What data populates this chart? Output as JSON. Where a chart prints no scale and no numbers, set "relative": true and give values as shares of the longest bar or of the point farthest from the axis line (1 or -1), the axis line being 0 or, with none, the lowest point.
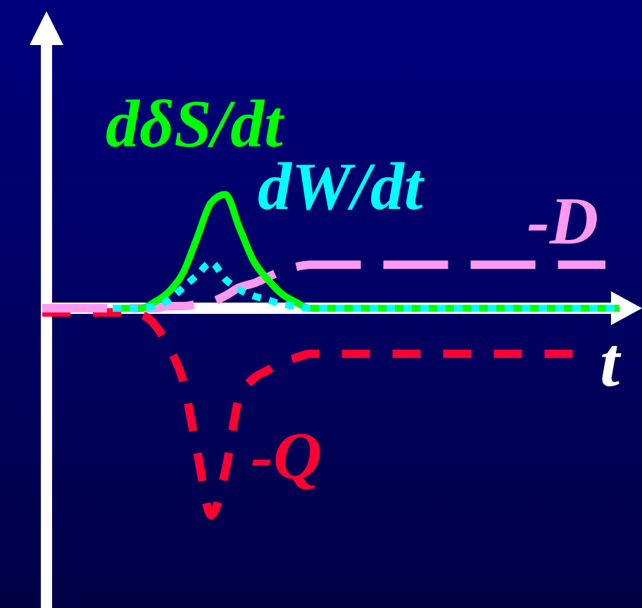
{
  "chart_data": {
    "type": "line",
    "relative": true,
    "xlabel": "t",
    "categories": [
      null,
      null,
      null,
      null,
      null,
      null,
      null,
      null,
      null,
      null,
      null,
      null,
      null,
      null,
      null,
      null,
      null,
      null,
      null,
      null,
      null,
      null,
      null,
      null,
      null,
      null,
      null,
      null,
      null,
      null,
      null,
      null,
      null,
      null,
      null,
      null,
      null,
      null,
      null,
      null,
      null,
      null
    ],
    "series": [
      {
        "name": "dδS/dt",
        "color": "#00ff00",
        "line_style": "solid",
        "values": [
          null,
          null,
          null,
          null,
          null,
          0,
          0,
          0,
          0.03,
          0.08,
          0.17,
          0.34,
          0.51,
          0.55,
          0.39,
          0.23,
          0.14,
          0.07,
          0.03,
          0,
          0,
          0,
          0,
          0,
          0,
          0,
          0,
          0,
          0,
          0,
          0,
          0,
          0,
          0,
          0,
          0,
          0,
          0,
          0,
          0,
          0,
          0
        ]
      },
      {
        "name": "dW/dt",
        "color": "#00ffff",
        "line_style": "dotted",
        "values": [
          null,
          null,
          null,
          null,
          null,
          0,
          0,
          0,
          0.01,
          0.04,
          0.1,
          0.16,
          0.22,
          0.14,
          0.09,
          0.06,
          0.04,
          0.02,
          0.01,
          0,
          0,
          0,
          0,
          0,
          0,
          0,
          0,
          0,
          0,
          0,
          0,
          0,
          0,
          0,
          0,
          0,
          0,
          0,
          0,
          0,
          0,
          0
        ]
      },
      {
        "name": "-D",
        "color": "#ff99ee",
        "line_style": "dashed",
        "values": [
          0,
          0,
          0,
          0,
          0,
          0,
          0,
          0,
          0,
          0.01,
          0.01,
          0.02,
          0.03,
          0.06,
          0.1,
          0.12,
          0.15,
          0.18,
          0.2,
          0.21,
          0.21,
          0.21,
          0.21,
          0.21,
          0.21,
          0.21,
          0.21,
          0.21,
          0.21,
          0.21,
          0.21,
          0.21,
          0.21,
          0.21,
          0.21,
          0.21,
          0.21,
          0.21,
          0.21,
          0.21,
          0.21,
          null
        ]
      },
      {
        "name": "-Q",
        "color": "#ff0033",
        "line_style": "dashed",
        "values": [
          -0.02,
          -0.02,
          -0.02,
          -0.02,
          -0.02,
          -0.02,
          -0.02,
          -0.03,
          -0.08,
          -0.19,
          -0.35,
          -0.69,
          -1,
          -0.79,
          -0.43,
          -0.34,
          -0.3,
          -0.26,
          -0.24,
          -0.22,
          -0.22,
          -0.22,
          -0.22,
          -0.22,
          -0.22,
          -0.22,
          -0.22,
          -0.22,
          -0.22,
          -0.22,
          -0.22,
          -0.22,
          -0.22,
          -0.22,
          -0.22,
          -0.22,
          -0.22,
          -0.22,
          -0.22,
          null,
          null,
          null
        ]
      }
    ]
  }
}
